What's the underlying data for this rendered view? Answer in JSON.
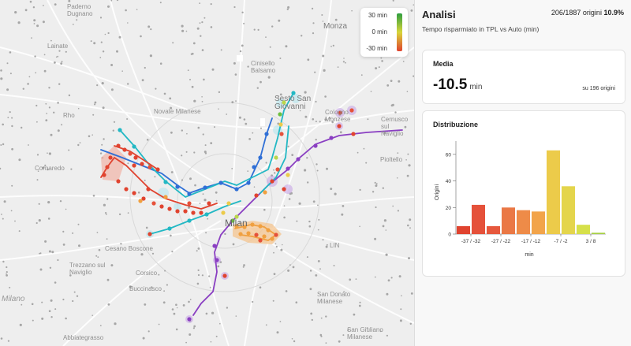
{
  "map": {
    "places": [
      "Monza",
      "Lainate",
      "Paderno Dugnano",
      "Cinisello Balsamo",
      "Sesto San Giovanni",
      "Rho",
      "Novate Milanese",
      "Cologno Monzese",
      "Cernusco sul Naviglio",
      "Cornaredo",
      "Pioltello",
      "Milan",
      "Cesano Boscone",
      "Buccinasco",
      "Corsico",
      "San Donato Milanese",
      "Trezzano sul Naviglio",
      "Milano",
      "San Giuliano Milanese",
      "LIN",
      "Abbiategrasso"
    ],
    "colors": {
      "blue": "#2f6fd6",
      "cyan": "#22b8c4",
      "purple": "#8a3fc2",
      "red": "#e0432f",
      "orange": "#f0a040",
      "green": "#6cbf3e"
    }
  },
  "legend": {
    "top": "30 min",
    "mid": "0 min",
    "bottom": "-30 min"
  },
  "panel": {
    "title": "Analisi",
    "count_text": "206/1887 origini",
    "count_pct": "10.9%",
    "subtitle": "Tempo risparmiato in TPL vs Auto (min)",
    "media": {
      "title": "Media",
      "value": "-10.5",
      "unit": "min",
      "note": "su 196 origini"
    },
    "dist": {
      "title": "Distribuzione"
    }
  },
  "chart_data": {
    "type": "bar",
    "ylabel": "Origini",
    "xlabel": "min",
    "ylim": [
      0,
      70
    ],
    "yticks": [
      0,
      20,
      40,
      60
    ],
    "tick_labels": [
      "-37 / -32",
      "-27 / -22",
      "-17 / -12",
      "-7 / -2",
      "3 / 8"
    ],
    "bins": [
      -37,
      -32,
      -27,
      -22,
      -17,
      -12,
      -7,
      -2,
      3,
      8
    ],
    "values": [
      6,
      22,
      6,
      20,
      18,
      17,
      63,
      36,
      7,
      1
    ],
    "colors": [
      "#e0432f",
      "#e5513a",
      "#e6583d",
      "#ea7845",
      "#ee8b48",
      "#f2a44a",
      "#eccb4a",
      "#e4d54c",
      "#d6e04a",
      "#a6cf44"
    ]
  }
}
